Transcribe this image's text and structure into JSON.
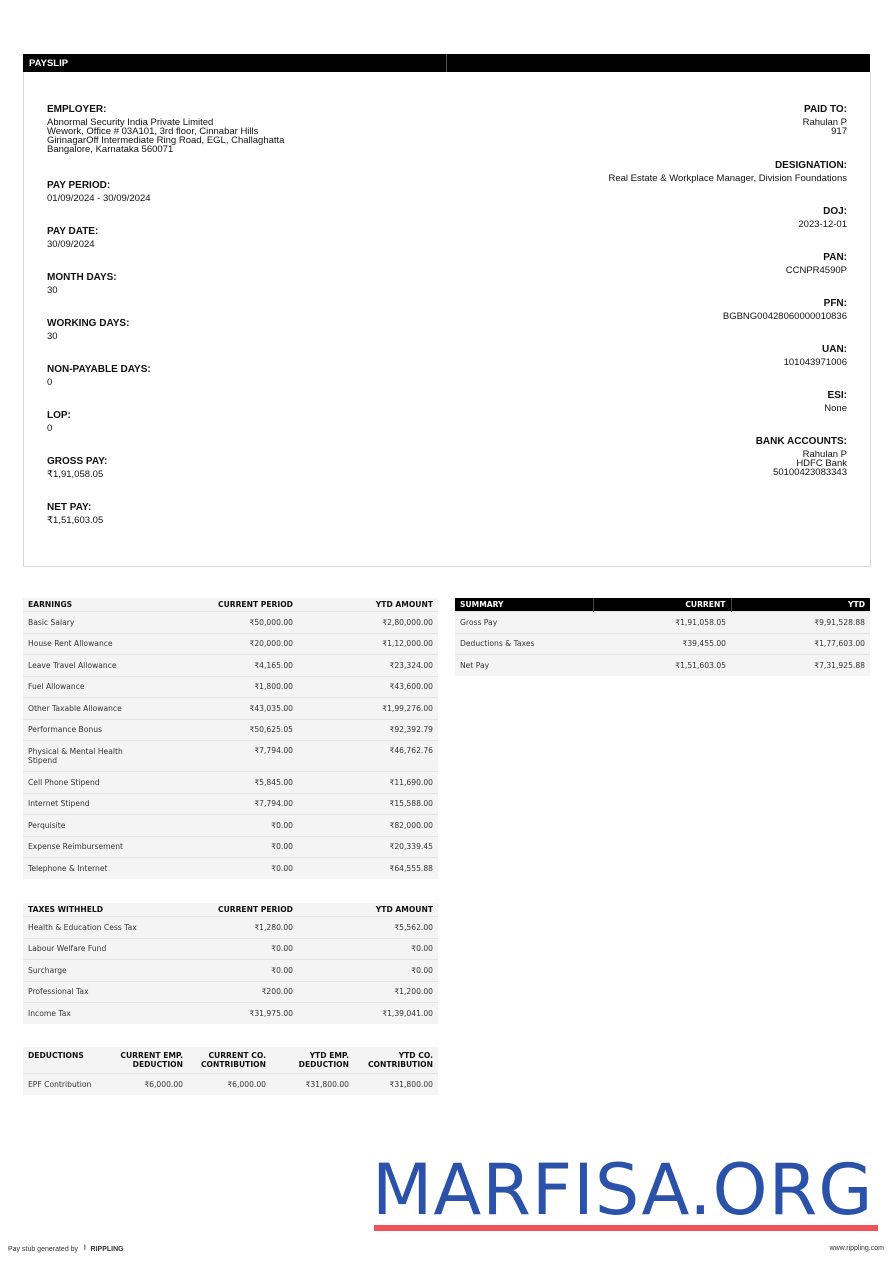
{
  "header": {
    "title": "PAYSLIP"
  },
  "left_fields": [
    {
      "label": "EMPLOYER:",
      "value": "Abnormal Security India Private Limited\nWework, Office # 03A101, 3rd floor, Cinnabar Hills\nGirinagarOff Intermediate Ring Road, EGL, Challaghatta\nBangalore, Karnataka 560071"
    },
    {
      "label": "PAY PERIOD:",
      "value": "01/09/2024 - 30/09/2024"
    },
    {
      "label": "PAY DATE:",
      "value": "30/09/2024"
    },
    {
      "label": "MONTH DAYS:",
      "value": "30"
    },
    {
      "label": "WORKING DAYS:",
      "value": "30"
    },
    {
      "label": "NON-PAYABLE DAYS:",
      "value": "0"
    },
    {
      "label": "LOP:",
      "value": "0"
    },
    {
      "label": "GROSS PAY:",
      "value": "₹1,91,058.05"
    },
    {
      "label": "NET PAY:",
      "value": "₹1,51,603.05"
    }
  ],
  "right_fields": [
    {
      "label": "PAID TO:",
      "value": "Rahulan P\n917"
    },
    {
      "label": "DESIGNATION:",
      "value": "Real Estate & Workplace Manager, Division Foundations"
    },
    {
      "label": "DOJ:",
      "value": "2023-12-01"
    },
    {
      "label": "PAN:",
      "value": "CCNPR4590P"
    },
    {
      "label": "PFN:",
      "value": "BGBNG00428060000010836"
    },
    {
      "label": "UAN:",
      "value": "101043971006"
    },
    {
      "label": "ESI:",
      "value": "None"
    },
    {
      "label": "BANK ACCOUNTS:",
      "value": "Rahulan P\nHDFC Bank\n50100423083343"
    }
  ],
  "earnings": {
    "headers": [
      "EARNINGS",
      "CURRENT PERIOD",
      "YTD AMOUNT"
    ],
    "rows": [
      [
        "Basic Salary",
        "₹50,000.00",
        "₹2,80,000.00"
      ],
      [
        "House Rent Allowance",
        "₹20,000.00",
        "₹1,12,000.00"
      ],
      [
        "Leave Travel Allowance",
        "₹4,165.00",
        "₹23,324.00"
      ],
      [
        "Fuel Allowance",
        "₹1,800.00",
        "₹43,600.00"
      ],
      [
        "Other Taxable Allowance",
        "₹43,035.00",
        "₹1,99,276.00"
      ],
      [
        "Performance Bonus",
        "₹50,625.05",
        "₹92,392.79"
      ],
      [
        "Physical & Mental Health Stipend",
        "₹7,794.00",
        "₹46,762.76"
      ],
      [
        "Cell Phone Stipend",
        "₹5,845.00",
        "₹11,690.00"
      ],
      [
        "Internet Stipend",
        "₹7,794.00",
        "₹15,588.00"
      ],
      [
        "Perquisite",
        "₹0.00",
        "₹82,000.00"
      ],
      [
        "Expense Reimbursement",
        "₹0.00",
        "₹20,339.45"
      ],
      [
        "Telephone & Internet",
        "₹0.00",
        "₹64,555.88"
      ]
    ]
  },
  "taxes": {
    "headers": [
      "TAXES WITHHELD",
      "CURRENT PERIOD",
      "YTD AMOUNT"
    ],
    "rows": [
      [
        "Health & Education Cess Tax",
        "₹1,280.00",
        "₹5,562.00"
      ],
      [
        "Labour Welfare Fund",
        "₹0.00",
        "₹0.00"
      ],
      [
        "Surcharge",
        "₹0.00",
        "₹0.00"
      ],
      [
        "Professional Tax",
        "₹200.00",
        "₹1,200.00"
      ],
      [
        "Income Tax",
        "₹31,975.00",
        "₹1,39,041.00"
      ]
    ]
  },
  "deductions": {
    "headers": [
      "DEDUCTIONS",
      "CURRENT EMP. DEDUCTION",
      "CURRENT CO. CONTRIBUTION",
      "YTD EMP. DEDUCTION",
      "YTD CO. CONTRIBUTION"
    ],
    "rows": [
      [
        "EPF Contribution",
        "₹6,000.00",
        "₹6,000.00",
        "₹31,800.00",
        "₹31,800.00"
      ]
    ]
  },
  "summary": {
    "headers": [
      "SUMMARY",
      "CURRENT",
      "YTD"
    ],
    "rows": [
      [
        "Gross Pay",
        "₹1,91,058.05",
        "₹9,91,528.88"
      ],
      [
        "Deductions & Taxes",
        "₹39,455.00",
        "₹1,77,603.00"
      ],
      [
        "Net Pay",
        "₹1,51,603.05",
        "₹7,31,925.88"
      ]
    ]
  },
  "watermark": {
    "text": "MARFISA.ORG",
    "color": "#2a52a8",
    "underline_color": "#f0525a"
  },
  "footer": {
    "generated_by": "Pay stub generated by",
    "brand": "RIPPLING",
    "url": "www.rippling.com"
  }
}
